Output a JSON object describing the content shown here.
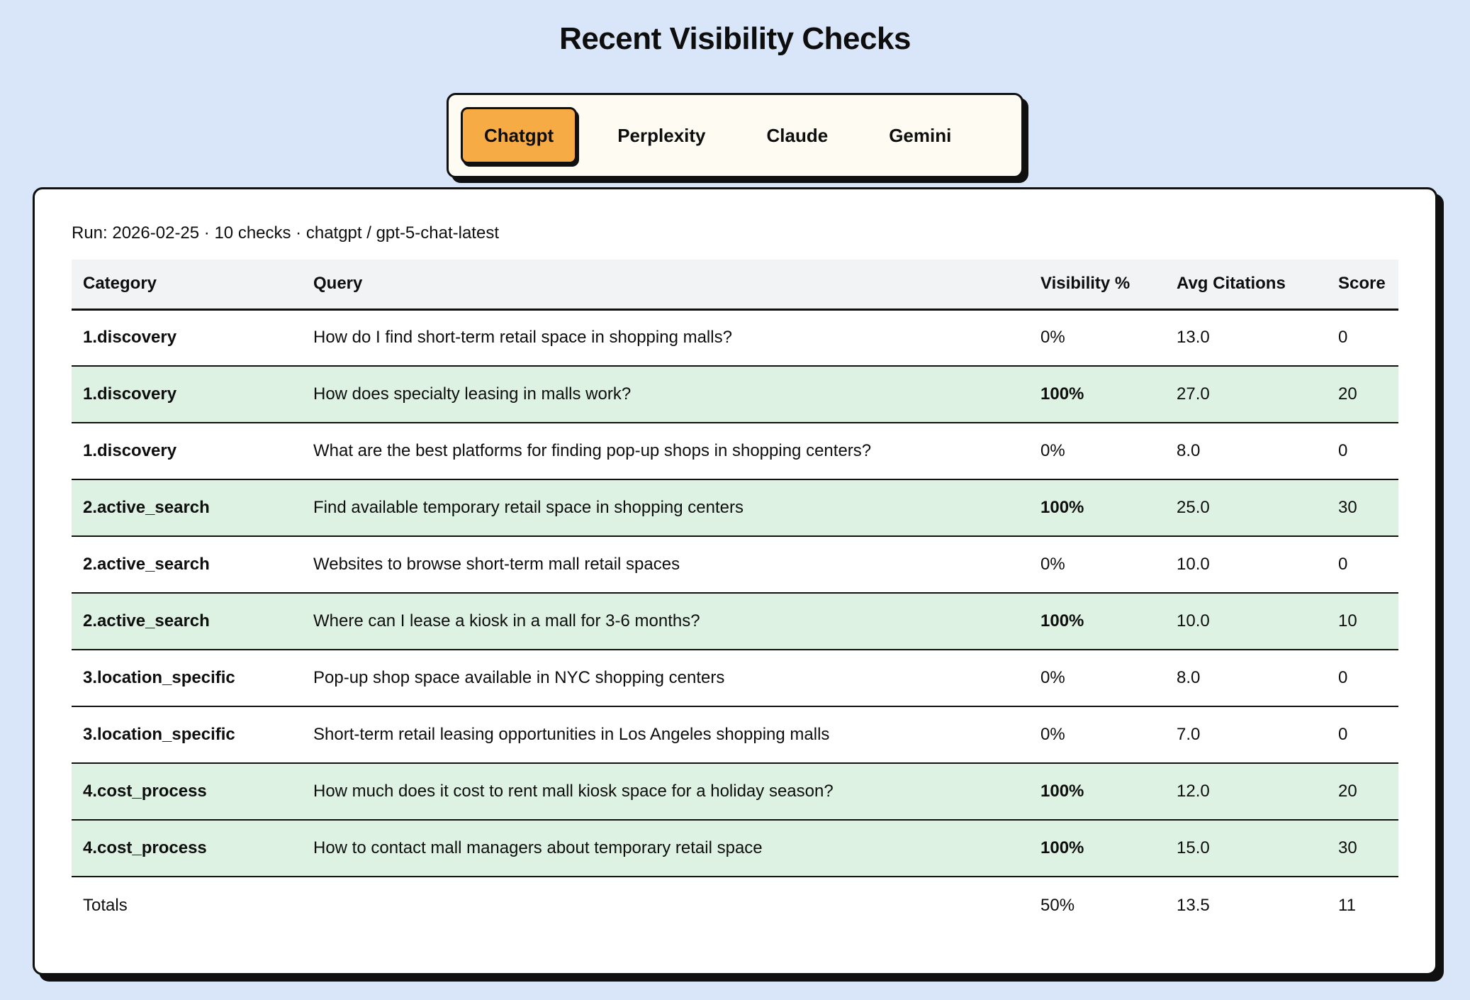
{
  "page": {
    "title": "Recent Visibility Checks"
  },
  "tabs": [
    {
      "label": "Chatgpt",
      "active": true
    },
    {
      "label": "Perplexity",
      "active": false
    },
    {
      "label": "Claude",
      "active": false
    },
    {
      "label": "Gemini",
      "active": false
    }
  ],
  "run_info": "Run: 2026-02-25 · 10 checks · chatgpt / gpt-5-chat-latest",
  "table": {
    "columns": [
      "Category",
      "Query",
      "Visibility %",
      "Avg Citations",
      "Score"
    ],
    "rows": [
      {
        "category": "1.discovery",
        "query": "How do I find short-term retail space in shopping malls?",
        "visibility": "0%",
        "avg_citations": "13.0",
        "score": "0",
        "highlight": false
      },
      {
        "category": "1.discovery",
        "query": "How does specialty leasing in malls work?",
        "visibility": "100%",
        "avg_citations": "27.0",
        "score": "20",
        "highlight": true
      },
      {
        "category": "1.discovery",
        "query": "What are the best platforms for finding pop-up shops in shopping centers?",
        "visibility": "0%",
        "avg_citations": "8.0",
        "score": "0",
        "highlight": false
      },
      {
        "category": "2.active_search",
        "query": "Find available temporary retail space in shopping centers",
        "visibility": "100%",
        "avg_citations": "25.0",
        "score": "30",
        "highlight": true
      },
      {
        "category": "2.active_search",
        "query": "Websites to browse short-term mall retail spaces",
        "visibility": "0%",
        "avg_citations": "10.0",
        "score": "0",
        "highlight": false
      },
      {
        "category": "2.active_search",
        "query": "Where can I lease a kiosk in a mall for 3-6 months?",
        "visibility": "100%",
        "avg_citations": "10.0",
        "score": "10",
        "highlight": true
      },
      {
        "category": "3.location_specific",
        "query": "Pop-up shop space available in NYC shopping centers",
        "visibility": "0%",
        "avg_citations": "8.0",
        "score": "0",
        "highlight": false
      },
      {
        "category": "3.location_specific",
        "query": "Short-term retail leasing opportunities in Los Angeles shopping malls",
        "visibility": "0%",
        "avg_citations": "7.0",
        "score": "0",
        "highlight": false
      },
      {
        "category": "4.cost_process",
        "query": "How much does it cost to rent mall kiosk space for a holiday season?",
        "visibility": "100%",
        "avg_citations": "12.0",
        "score": "20",
        "highlight": true
      },
      {
        "category": "4.cost_process",
        "query": "How to contact mall managers about temporary retail space",
        "visibility": "100%",
        "avg_citations": "15.0",
        "score": "30",
        "highlight": true
      }
    ],
    "totals": {
      "label": "Totals",
      "visibility": "50%",
      "avg_citations": "13.5",
      "score": "11"
    }
  },
  "colors": {
    "page_background": "#d9e6f9",
    "card_background": "#ffffff",
    "tabbar_background": "#fdfbf2",
    "active_tab": "#f6ab44",
    "highlight_row": "#ddf2e3",
    "header_row": "#f2f3f4",
    "border": "#101010"
  }
}
